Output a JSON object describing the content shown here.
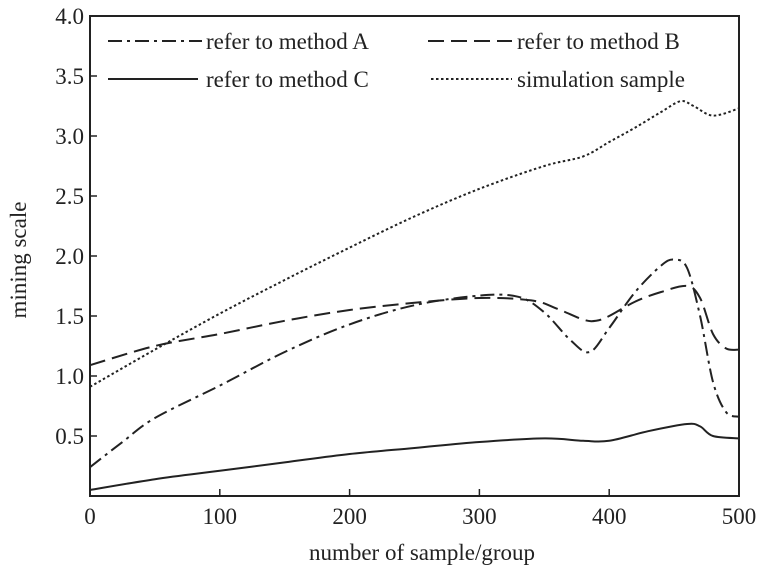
{
  "chart_data": {
    "type": "line",
    "title": "",
    "xlabel": "number of sample/group",
    "ylabel": "mining scale",
    "xlim": [
      0,
      500
    ],
    "ylim": [
      0,
      4.0
    ],
    "xticks": [
      0,
      100,
      200,
      300,
      400,
      500
    ],
    "xtick_labels": [
      "0",
      "100",
      "200",
      "300",
      "400",
      "500"
    ],
    "yticks": [
      0.5,
      1.0,
      1.5,
      2.0,
      2.5,
      3.0,
      3.5,
      4.0
    ],
    "ytick_labels": [
      "0.5",
      "1.0",
      "1.5",
      "2.0",
      "2.5",
      "3.0",
      "3.5",
      "4.0"
    ],
    "grid": false,
    "legend_position": "top",
    "series": [
      {
        "name": "refer to method A",
        "style": "dashdot",
        "x": [
          0,
          25,
          50,
          100,
          150,
          200,
          250,
          300,
          330,
          350,
          370,
          385,
          400,
          420,
          440,
          450,
          460,
          470,
          480,
          490,
          500
        ],
        "y": [
          0.24,
          0.45,
          0.65,
          0.92,
          1.2,
          1.43,
          1.59,
          1.67,
          1.66,
          1.53,
          1.3,
          1.2,
          1.4,
          1.7,
          1.92,
          1.97,
          1.9,
          1.5,
          0.95,
          0.7,
          0.66
        ]
      },
      {
        "name": "refer to method B",
        "style": "dashed",
        "x": [
          0,
          50,
          100,
          150,
          200,
          250,
          300,
          340,
          360,
          380,
          390,
          400,
          420,
          440,
          460,
          470,
          480,
          490,
          500
        ],
        "y": [
          1.09,
          1.25,
          1.35,
          1.46,
          1.55,
          1.61,
          1.65,
          1.63,
          1.56,
          1.47,
          1.46,
          1.5,
          1.62,
          1.7,
          1.75,
          1.65,
          1.35,
          1.23,
          1.22
        ]
      },
      {
        "name": "refer to method C",
        "style": "solid",
        "x": [
          0,
          50,
          100,
          150,
          200,
          250,
          300,
          350,
          380,
          400,
          430,
          460,
          470,
          480,
          500
        ],
        "y": [
          0.05,
          0.14,
          0.21,
          0.28,
          0.35,
          0.4,
          0.45,
          0.48,
          0.46,
          0.46,
          0.54,
          0.6,
          0.58,
          0.5,
          0.48
        ]
      },
      {
        "name": "simulation sample",
        "style": "dotted",
        "x": [
          0,
          50,
          100,
          150,
          200,
          250,
          300,
          350,
          380,
          400,
          420,
          440,
          455,
          465,
          480,
          500
        ],
        "y": [
          0.91,
          1.22,
          1.52,
          1.8,
          2.07,
          2.33,
          2.56,
          2.75,
          2.83,
          2.95,
          3.07,
          3.2,
          3.29,
          3.25,
          3.17,
          3.23
        ]
      }
    ]
  }
}
